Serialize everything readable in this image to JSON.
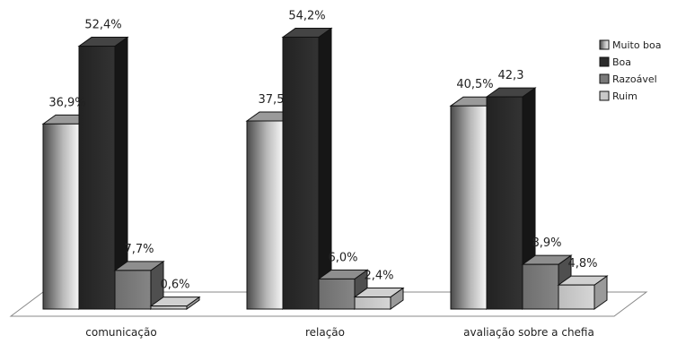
{
  "chart_data": {
    "type": "bar",
    "categories": [
      "comunicação",
      "relação",
      "avaliação sobre a chefia"
    ],
    "series": [
      {
        "name": "Muito boa",
        "values": [
          36.9,
          37.5,
          40.5
        ],
        "labels": [
          "36,9%",
          "37,5",
          "40,5%"
        ]
      },
      {
        "name": "Boa",
        "values": [
          52.4,
          54.2,
          42.3
        ],
        "labels": [
          "52,4%",
          "54,2%",
          "42,3"
        ]
      },
      {
        "name": "Razoável",
        "values": [
          7.7,
          6.0,
          8.9
        ],
        "labels": [
          "7,7%",
          "6,0%",
          "8,9%"
        ]
      },
      {
        "name": "Ruim",
        "values": [
          0.6,
          2.4,
          4.8
        ],
        "labels": [
          "0,6%",
          "2,4%",
          "4,8%"
        ]
      }
    ],
    "ylim": [
      0,
      60
    ],
    "grid": false,
    "legend": "top-right",
    "three_d": true,
    "colors": {
      "Muito boa": "#d4d4d4",
      "Boa": "#2b2b2b",
      "Razoável": "#7a7a7a",
      "Ruim": "#c8c8c8"
    }
  }
}
